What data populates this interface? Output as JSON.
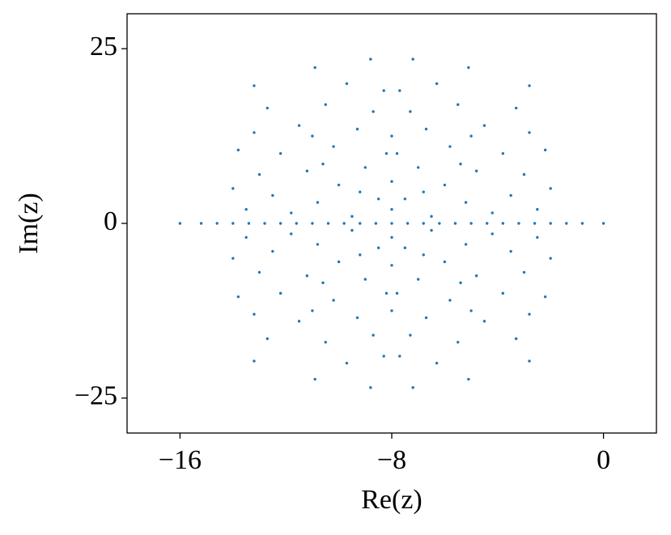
{
  "chart_data": {
    "type": "scatter",
    "x_label": "Re(z)",
    "y_label": "Im(z)",
    "color": "#1f77b4",
    "xlim": [
      -18,
      2
    ],
    "ylim": [
      -30,
      30
    ],
    "xticks": [
      {
        "value": -16,
        "label": "−16"
      },
      {
        "value": -8,
        "label": "−8"
      },
      0
    ],
    "yticks": [
      {
        "value": -25,
        "label": "−25"
      },
      0,
      25
    ],
    "x": [
      -16,
      -15.2,
      -14.6,
      -14,
      -13.4,
      -12.8,
      -12.2,
      -11.6,
      -11,
      -10.4,
      -9.8,
      -9.2,
      -8.6,
      -8,
      -7.4,
      -6.8,
      -6.2,
      -5.6,
      -5,
      -4.4,
      -3.8,
      -3.2,
      -2.6,
      -2,
      -1.4,
      -0.8,
      0,
      -14,
      -14,
      -2,
      -2,
      -13.8,
      -13.8,
      -2.2,
      -2.2,
      -13.5,
      -13.5,
      -2.5,
      -2.5,
      -13.2,
      -13.2,
      -2.8,
      -2.8,
      -13,
      -13,
      -3,
      -3,
      -12.7,
      -12.7,
      -3.3,
      -3.3,
      -12.5,
      -12.5,
      -3.5,
      -3.5,
      -12.2,
      -12.2,
      -3.8,
      -3.8,
      -13.2,
      -13.2,
      -2.8,
      -2.8,
      -11.8,
      -11.8,
      -4.2,
      -4.2,
      -11.5,
      -11.5,
      -4.5,
      -4.5,
      -11.2,
      -11.2,
      -4.8,
      -4.8,
      -10.9,
      -10.9,
      -5.1,
      -5.1,
      -10.8,
      -10.8,
      -5.2,
      -5.2,
      -10.5,
      -10.5,
      -5.5,
      -5.5,
      -10.2,
      -10.2,
      -5.8,
      -5.8,
      -10,
      -10,
      -6,
      -6,
      -9.7,
      -9.7,
      -6.3,
      -6.3,
      -9.5,
      -9.5,
      -6.5,
      -6.5,
      -9.3,
      -9.3,
      -6.7,
      -6.7,
      -9,
      -9,
      -7,
      -7,
      -8.8,
      -8.8,
      -7.2,
      -7.2,
      -8.7,
      -8.7,
      -7.3,
      -7.3,
      -8.5,
      -8.5,
      -7.5,
      -7.5,
      -8.3,
      -8.3,
      -7.7,
      -7.7,
      -8.2,
      -8.2,
      -7.8,
      -7.8,
      -9.2,
      -9.2,
      -6.8,
      -6.8,
      -10.6,
      -10.6,
      -5.4,
      -5.4,
      -11,
      -11,
      -5,
      -5,
      -8,
      -8,
      -8,
      -8,
      -8,
      -8
    ],
    "y": [
      0,
      0,
      0,
      0,
      0,
      0,
      0,
      0,
      0,
      0,
      0,
      0,
      0,
      0,
      0,
      0,
      0,
      0,
      0,
      0,
      0,
      0,
      0,
      0,
      0,
      0,
      0,
      5,
      -5,
      5,
      -5,
      10.5,
      -10.5,
      10.5,
      -10.5,
      2,
      -2,
      2,
      -2,
      13,
      -13,
      13,
      -13,
      7,
      -7,
      7,
      -7,
      16.5,
      -16.5,
      16.5,
      -16.5,
      4,
      -4,
      4,
      -4,
      10,
      -10,
      10,
      -10,
      19.7,
      -19.7,
      19.7,
      -19.7,
      1.5,
      -1.5,
      1.5,
      -1.5,
      14,
      -14,
      14,
      -14,
      7.5,
      -7.5,
      7.5,
      -7.5,
      22.3,
      -22.3,
      22.3,
      -22.3,
      3,
      -3,
      3,
      -3,
      17,
      -17,
      17,
      -17,
      11,
      -11,
      11,
      -11,
      5.5,
      -5.5,
      5.5,
      -5.5,
      20,
      -20,
      20,
      -20,
      1,
      -1,
      1,
      -1,
      13.5,
      -13.5,
      13.5,
      -13.5,
      8,
      -8,
      8,
      -8,
      23.5,
      -23.5,
      23.5,
      -23.5,
      16,
      -16,
      16,
      -16,
      3.5,
      -3.5,
      3.5,
      -3.5,
      19,
      -19,
      19,
      -19,
      10,
      -10,
      10,
      -10,
      4.5,
      -4.5,
      4.5,
      -4.5,
      8.5,
      -8.5,
      8.5,
      -8.5,
      12.5,
      -12.5,
      12.5,
      -12.5,
      6,
      -6,
      12.5,
      -12.5,
      2,
      -2
    ]
  }
}
